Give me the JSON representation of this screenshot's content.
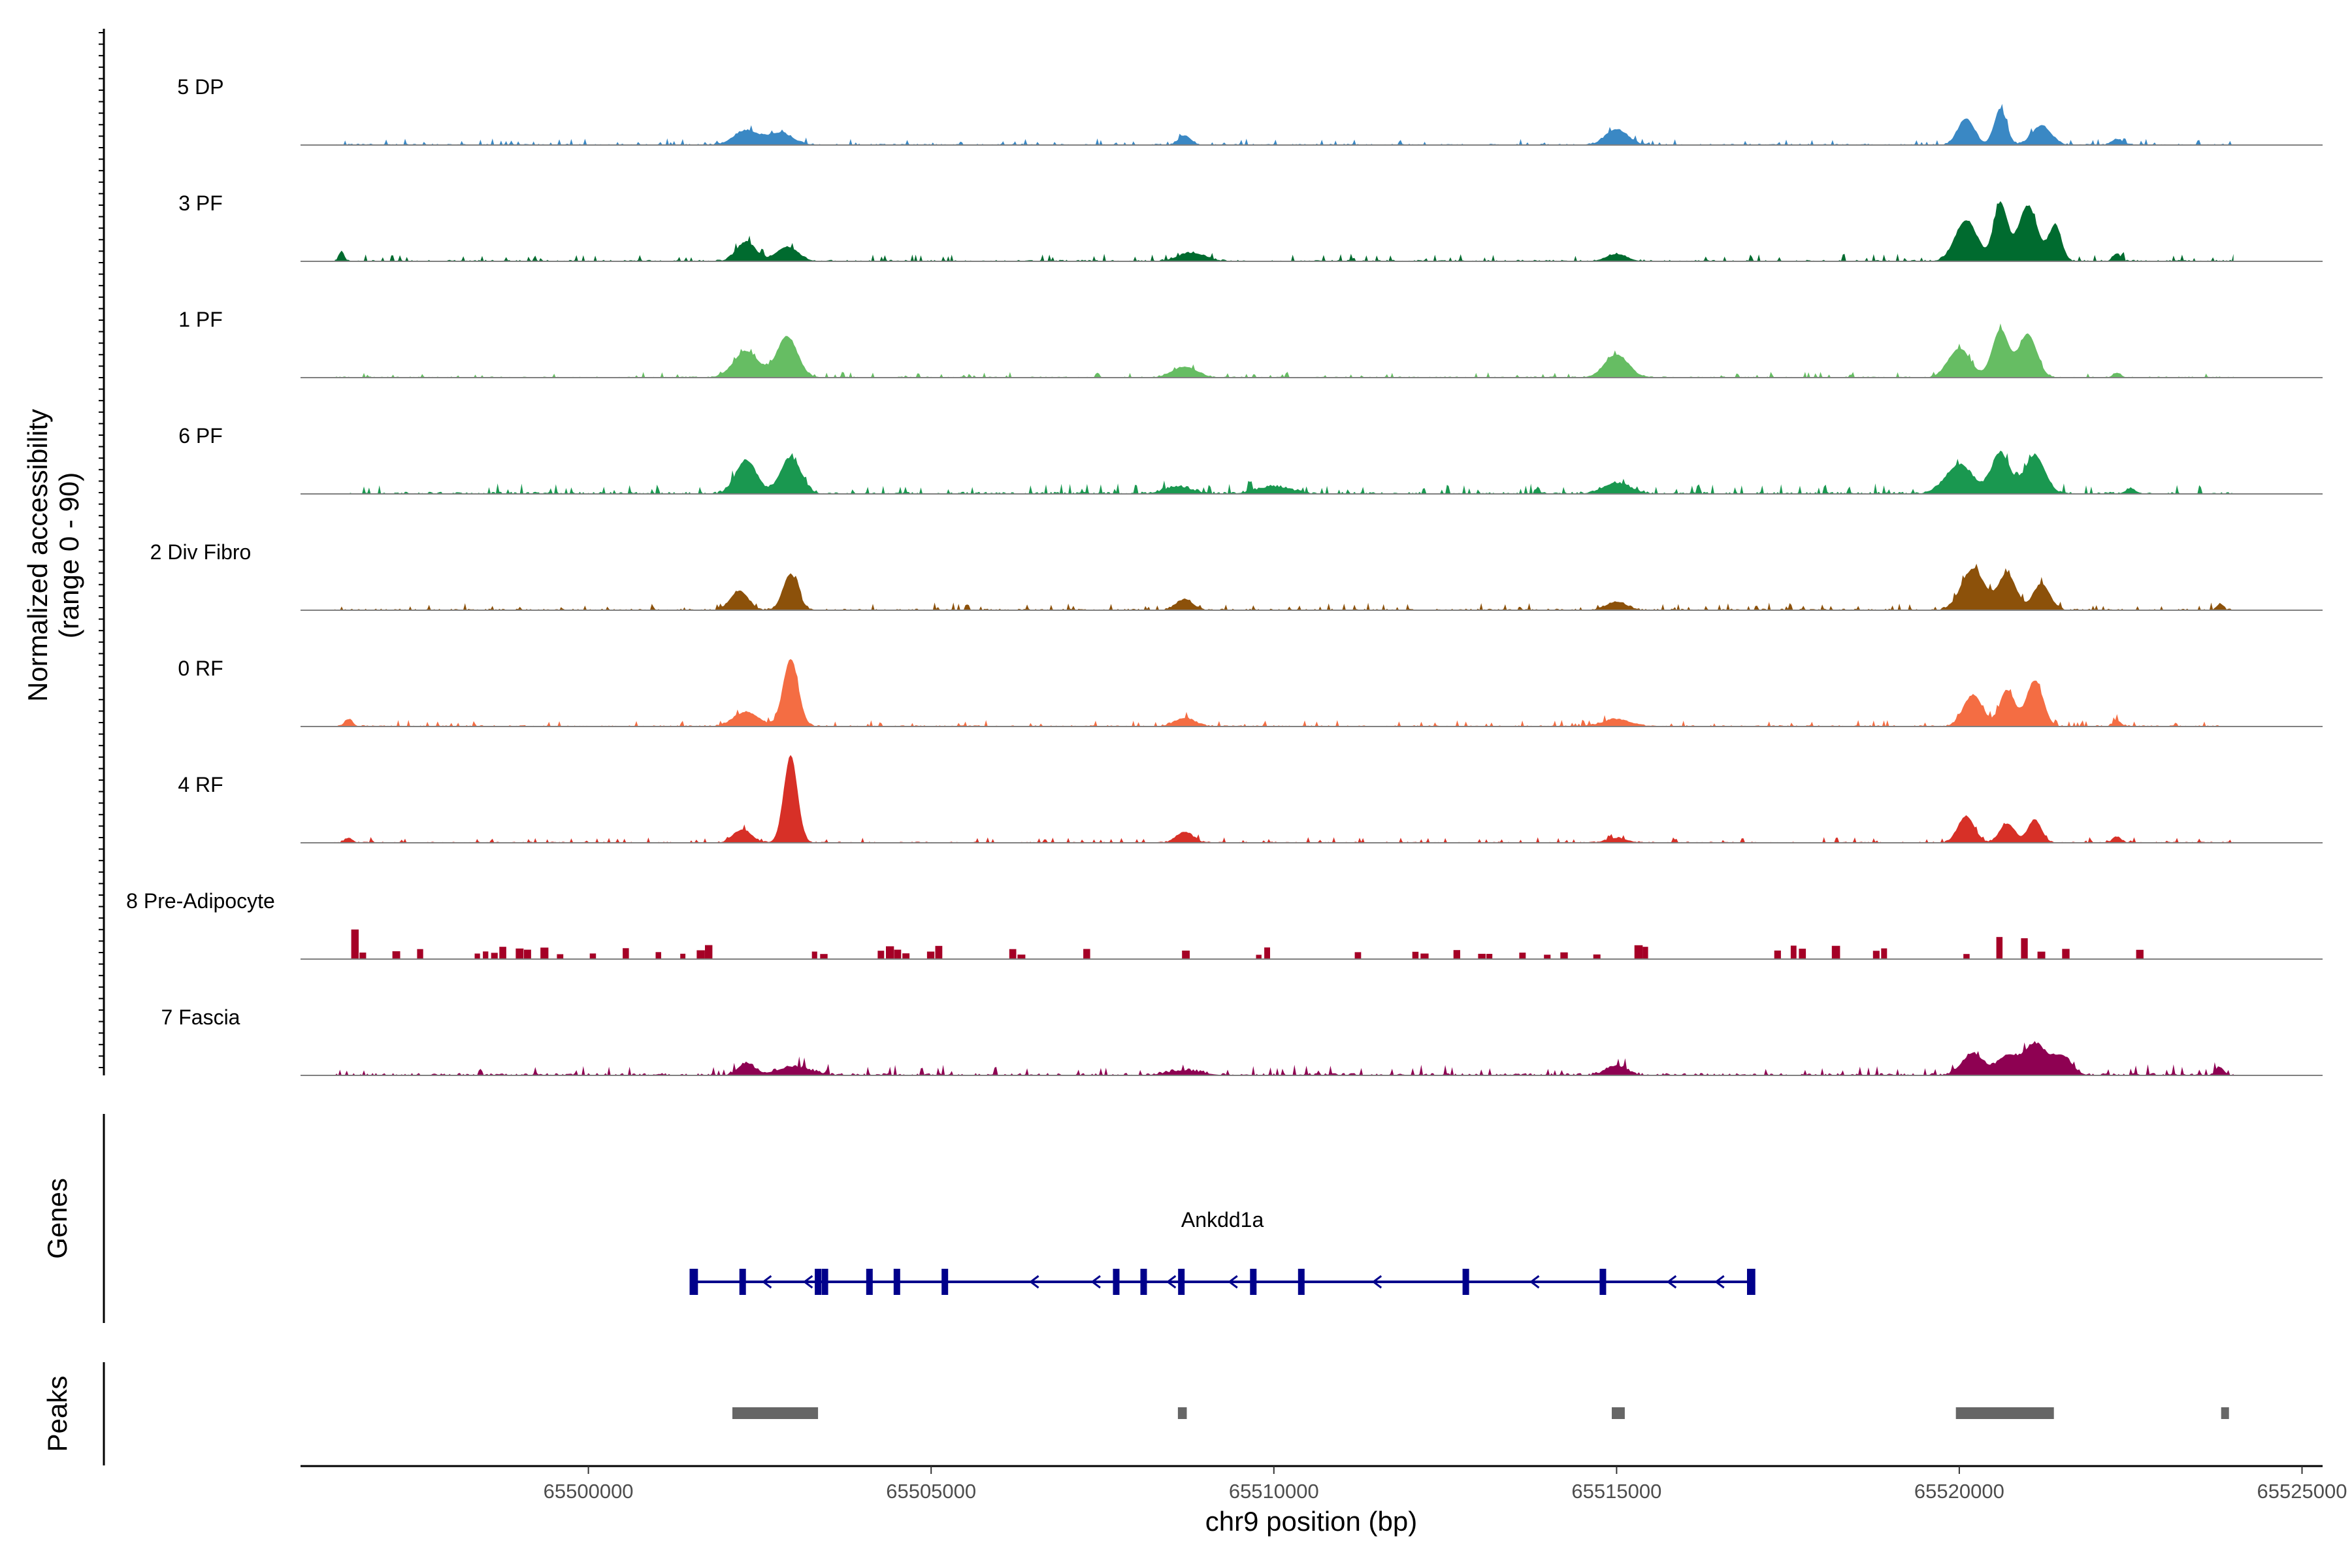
{
  "chart_data": {
    "type": "area",
    "title": "",
    "xlabel": "chr9 position (bp)",
    "ylabel": "Normalized accessibility",
    "ylabel_range": "(range 0 - 90)",
    "xlim": [
      65495800,
      65525300
    ],
    "ylim": [
      0,
      90
    ],
    "region_start": 65496300,
    "region_end": 65524000,
    "x_ticks": [
      65500000,
      65505000,
      65510000,
      65515000,
      65520000,
      65525000
    ],
    "x_tick_labels": [
      "65500000",
      "65505000",
      "65510000",
      "65515000",
      "65520000",
      "65525000"
    ],
    "panel_labels": {
      "genes": "Genes",
      "peaks": "Peaks"
    },
    "series": [
      {
        "name": "5 DP",
        "color": "#3a88c4",
        "sparse": false,
        "noise": 3.5,
        "seed": 11,
        "peaks": [
          [
            65502300,
            12,
            180
          ],
          [
            65502800,
            10,
            180
          ],
          [
            65508700,
            8,
            90
          ],
          [
            65515000,
            13,
            160
          ],
          [
            65520100,
            22,
            120
          ],
          [
            65520600,
            30,
            90
          ],
          [
            65521200,
            16,
            140
          ],
          [
            65522300,
            5,
            80
          ]
        ]
      },
      {
        "name": "3 PF",
        "color": "#006b2f",
        "sparse": false,
        "noise": 4,
        "seed": 23,
        "peaks": [
          [
            65496400,
            8,
            40
          ],
          [
            65502300,
            16,
            140
          ],
          [
            65502900,
            12,
            160
          ],
          [
            65508800,
            7,
            200
          ],
          [
            65515000,
            6,
            150
          ],
          [
            65520100,
            34,
            160
          ],
          [
            65520600,
            48,
            100
          ],
          [
            65521000,
            46,
            140
          ],
          [
            65521400,
            30,
            90
          ],
          [
            65522300,
            6,
            60
          ]
        ]
      },
      {
        "name": "1 PF",
        "color": "#66bd63",
        "sparse": false,
        "noise": 3,
        "seed": 37,
        "peaks": [
          [
            65502300,
            22,
            180
          ],
          [
            65502900,
            34,
            150
          ],
          [
            65508700,
            9,
            180
          ],
          [
            65515000,
            19,
            170
          ],
          [
            65520000,
            24,
            160
          ],
          [
            65520600,
            40,
            120
          ],
          [
            65521000,
            36,
            130
          ],
          [
            65522300,
            4,
            60
          ]
        ]
      },
      {
        "name": "6 PF",
        "color": "#1a9850",
        "sparse": false,
        "noise": 5.5,
        "seed": 41,
        "peaks": [
          [
            65502300,
            28,
            150
          ],
          [
            65502950,
            30,
            150
          ],
          [
            65508600,
            6,
            200
          ],
          [
            65510000,
            6,
            250
          ],
          [
            65515000,
            9,
            200
          ],
          [
            65520000,
            24,
            200
          ],
          [
            65520600,
            34,
            130
          ],
          [
            65521100,
            32,
            150
          ],
          [
            65522500,
            4,
            80
          ]
        ]
      },
      {
        "name": "2 Div Fibro",
        "color": "#8c510a",
        "sparse": false,
        "noise": 4,
        "seed": 53,
        "peaks": [
          [
            65502200,
            16,
            130
          ],
          [
            65502950,
            30,
            110
          ],
          [
            65508700,
            9,
            120
          ],
          [
            65515000,
            7,
            150
          ],
          [
            65520200,
            34,
            170
          ],
          [
            65520700,
            30,
            130
          ],
          [
            65521200,
            22,
            120
          ],
          [
            65523800,
            5,
            50
          ]
        ]
      },
      {
        "name": "0 RF",
        "color": "#f46d43",
        "sparse": false,
        "noise": 3.5,
        "seed": 67,
        "peaks": [
          [
            65496500,
            6,
            60
          ],
          [
            65502300,
            12,
            180
          ],
          [
            65502950,
            56,
            110
          ],
          [
            65508700,
            7,
            150
          ],
          [
            65515000,
            6,
            200
          ],
          [
            65520200,
            26,
            140
          ],
          [
            65520700,
            30,
            110
          ],
          [
            65521100,
            38,
            120
          ],
          [
            65522300,
            5,
            60
          ]
        ]
      },
      {
        "name": "4 RF",
        "color": "#d73027",
        "sparse": false,
        "noise": 3,
        "seed": 79,
        "peaks": [
          [
            65496500,
            4,
            60
          ],
          [
            65502250,
            11,
            130
          ],
          [
            65502950,
            72,
            100
          ],
          [
            65508700,
            9,
            120
          ],
          [
            65515000,
            4,
            150
          ],
          [
            65520100,
            22,
            120
          ],
          [
            65520700,
            16,
            110
          ],
          [
            65521100,
            19,
            100
          ],
          [
            65522300,
            5,
            60
          ]
        ]
      },
      {
        "name": "8 Pre-Adipocyte",
        "color": "#a50026",
        "sparse": true,
        "noise": 9,
        "seed": 97,
        "peaks": [
          [
            65496500,
            22,
            60
          ],
          [
            65520400,
            16,
            120
          ],
          [
            65520800,
            12,
            100
          ]
        ]
      },
      {
        "name": "7 Fascia",
        "color": "#8e0152",
        "sparse": false,
        "noise": 6,
        "seed": 103,
        "peaks": [
          [
            65502300,
            10,
            120
          ],
          [
            65503000,
            7,
            250
          ],
          [
            65508700,
            4,
            250
          ],
          [
            65515000,
            8,
            150
          ],
          [
            65520200,
            18,
            160
          ],
          [
            65520700,
            16,
            140
          ],
          [
            65521100,
            26,
            160
          ],
          [
            65521500,
            16,
            140
          ],
          [
            65523800,
            7,
            60
          ]
        ]
      }
    ],
    "genes": [
      {
        "name": "Ankdd1a",
        "strand": "-",
        "start": 65501500,
        "end": 65517000,
        "exons": [
          65501550,
          65502250,
          65503350,
          65503450,
          65504100,
          65504500,
          65505200,
          65507700,
          65508100,
          65508650,
          65509700,
          65510400,
          65512800,
          65514800,
          65516950
        ],
        "arrows": [
          65502600,
          65503200,
          65506500,
          65507400,
          65508500,
          65509400,
          65511500,
          65513800,
          65515800,
          65516500
        ],
        "color": "#00008b"
      }
    ],
    "peaks_track": [
      [
        65502100,
        65503350
      ],
      [
        65508600,
        65508730
      ],
      [
        65514930,
        65515120
      ],
      [
        65519950,
        65521380
      ],
      [
        65523820,
        65523930
      ]
    ],
    "peak_color": "#666666"
  }
}
